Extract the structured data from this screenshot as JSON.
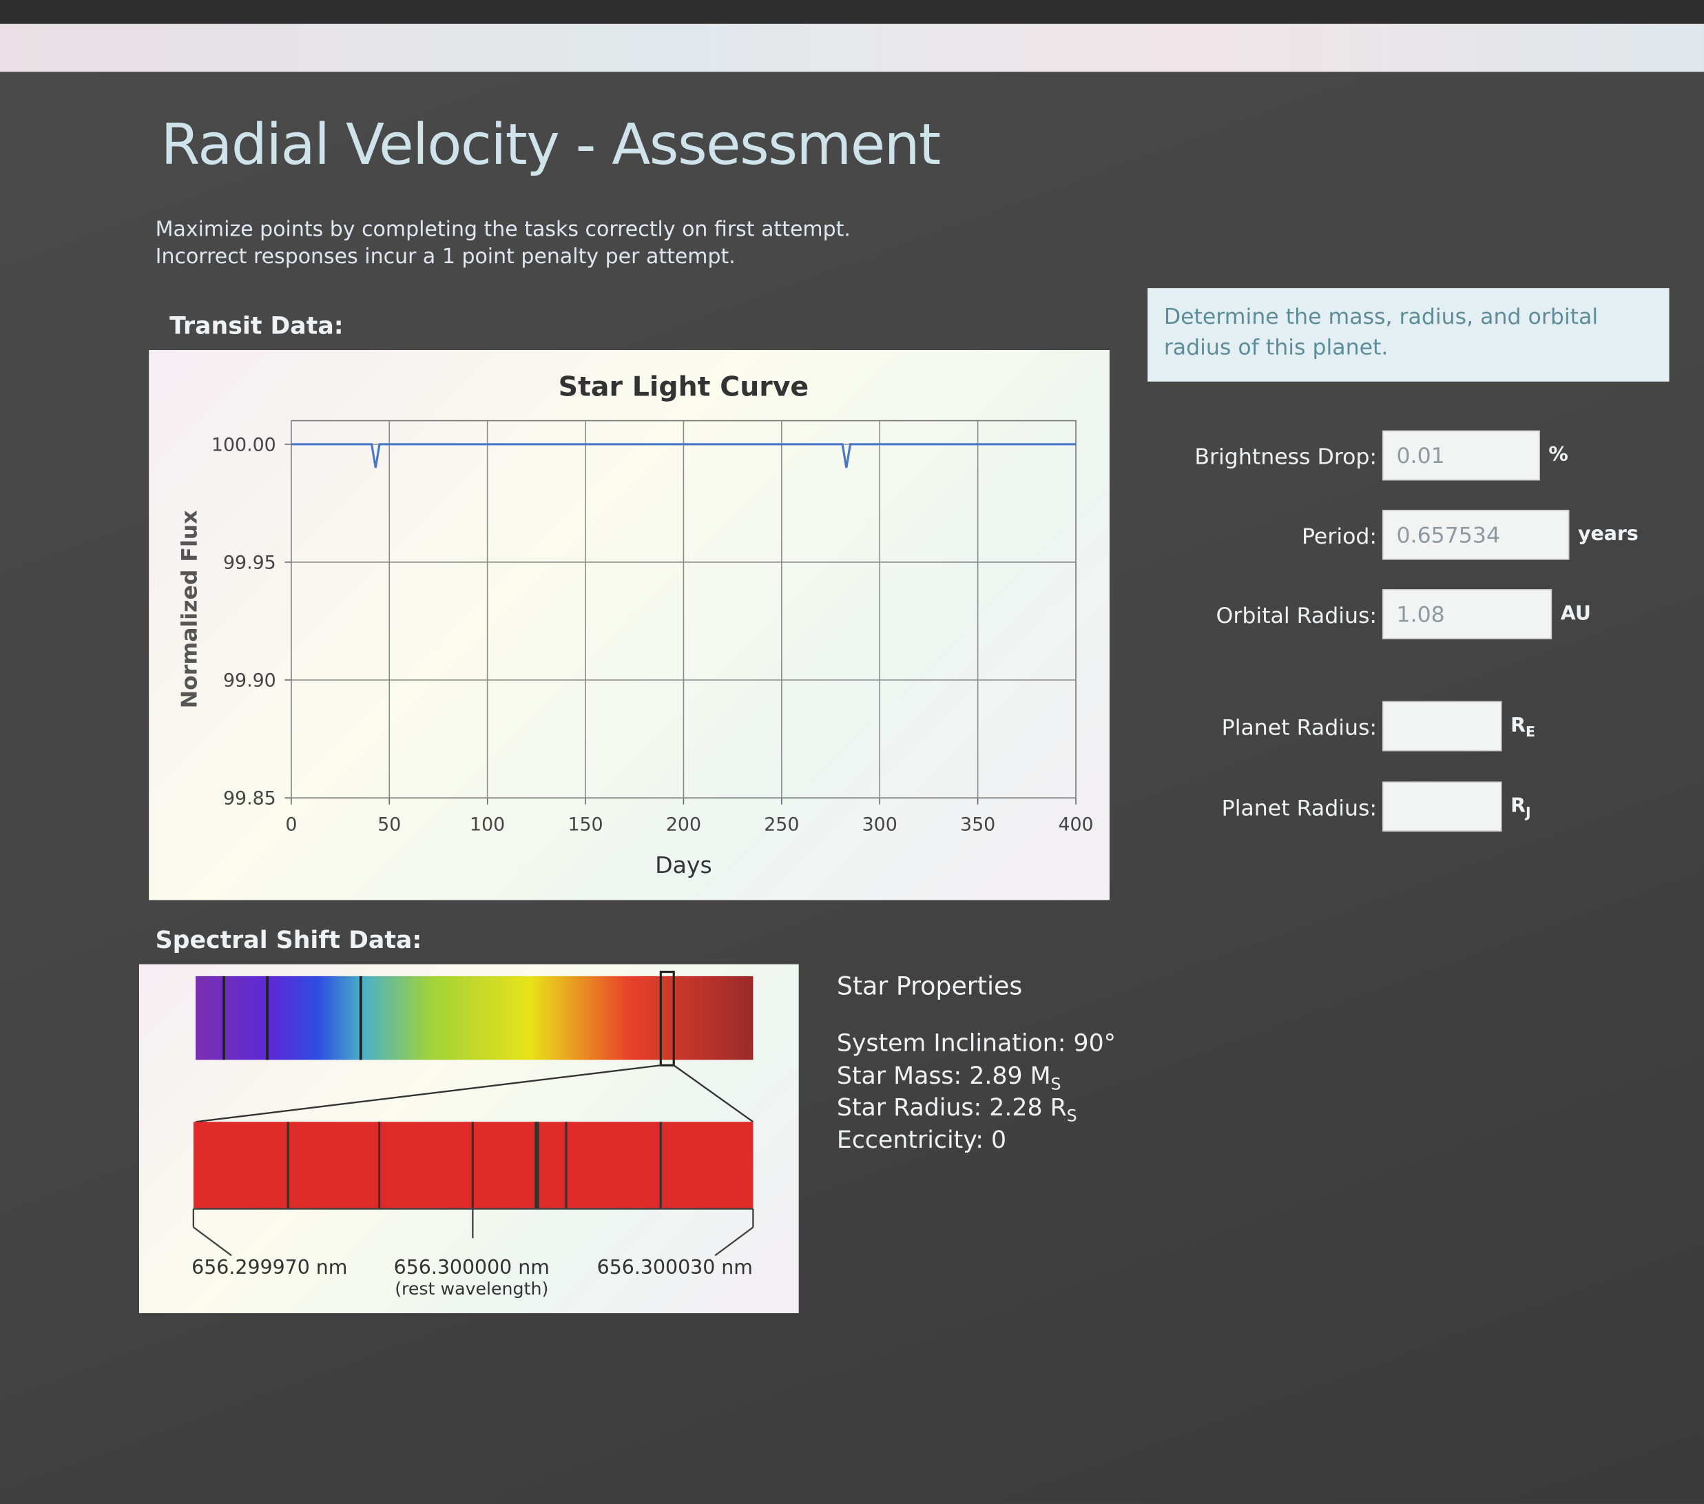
{
  "header": {
    "title": "Radial Velocity - Assessment",
    "instructions": [
      "Maximize points by completing the tasks correctly on first attempt.",
      "Incorrect responses incur a 1 point penalty per attempt."
    ]
  },
  "transit": {
    "heading": "Transit Data:",
    "chart": {
      "type": "line",
      "title": "Star Light Curve",
      "x_label": "Days",
      "y_label": "Normalized Flux",
      "x": [
        0,
        41,
        43,
        45,
        281,
        283,
        285,
        400
      ],
      "values": [
        100,
        100,
        99.99,
        100,
        100,
        99.99,
        100,
        100
      ],
      "color": "#4a78c8",
      "xlim": [
        0,
        400
      ],
      "ylim": [
        99.85,
        100.01
      ],
      "xticks": [
        0,
        50,
        100,
        150,
        200,
        250,
        300,
        350,
        400
      ],
      "yticks": [
        {
          "value": 99.85,
          "label": "99.85"
        },
        {
          "value": 99.9,
          "label": "99.90"
        },
        {
          "value": 99.95,
          "label": "99.95"
        },
        {
          "value": 100,
          "label": "100.00"
        }
      ],
      "grid": true
    }
  },
  "spectral": {
    "heading": "Spectral Shift Data:",
    "labels": [
      "656.299970 nm",
      "656.300000 nm",
      "656.300030 nm"
    ],
    "rest_note": "(rest wavelength)"
  },
  "star_properties": {
    "heading": "Star Properties",
    "lines": [
      {
        "text": "System Inclination: 90°"
      },
      {
        "text": "Star Mass: 2.89 M",
        "sub": "S"
      },
      {
        "text": "Star Radius: 2.28 R",
        "sub": "S"
      },
      {
        "text": "Eccentricity: 0"
      }
    ]
  },
  "task": "Determine the mass, radius, and orbital radius of this planet.",
  "form": {
    "fields": [
      {
        "label": "Brightness Drop:",
        "value": "0.01",
        "unit": {
          "base": "%"
        }
      },
      {
        "label": "Period:",
        "value": "0.657534",
        "unit": {
          "base": "years"
        }
      },
      {
        "label": "Orbital Radius:",
        "value": "1.08",
        "unit": {
          "base": "AU"
        }
      },
      {
        "label": "Planet Radius:",
        "unit": {
          "base": "R",
          "sub": "E"
        }
      },
      {
        "label": "Planet Radius:",
        "unit": {
          "base": "R",
          "sub": "J"
        }
      }
    ]
  }
}
